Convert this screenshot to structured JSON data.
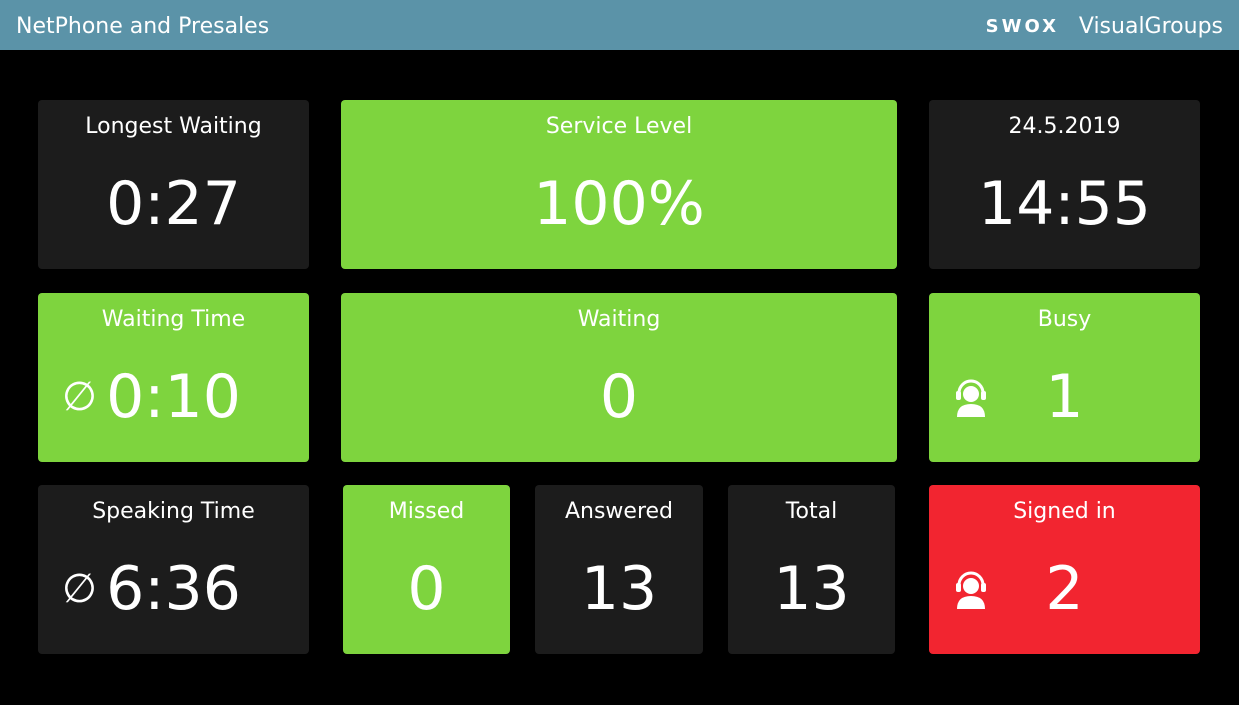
{
  "header": {
    "title": "NetPhone and Presales",
    "logo": "SWOX",
    "brand": "VisualGroups"
  },
  "tiles": [
    {
      "label": "Longest Waiting",
      "value": "0:27",
      "status": "neutral"
    },
    {
      "label": "Service Level",
      "value": "100%",
      "status": "ok"
    },
    {
      "label": "24.5.2019",
      "value": "14:55",
      "status": "neutral"
    },
    {
      "label": "Waiting Time",
      "value": "0:10",
      "prefix": "∅",
      "status": "ok"
    },
    {
      "label": "Waiting",
      "value": "0",
      "status": "ok"
    },
    {
      "label": "Busy",
      "value": "1",
      "icon": "agent",
      "status": "ok"
    },
    {
      "label": "Speaking Time",
      "value": "6:36",
      "prefix": "∅",
      "status": "neutral"
    },
    {
      "label": "Missed",
      "value": "0",
      "status": "ok"
    },
    {
      "label": "Answered",
      "value": "13",
      "status": "neutral"
    },
    {
      "label": "Total",
      "value": "13",
      "status": "neutral"
    },
    {
      "label": "Signed in",
      "value": "2",
      "icon": "agent",
      "status": "alert"
    }
  ]
}
